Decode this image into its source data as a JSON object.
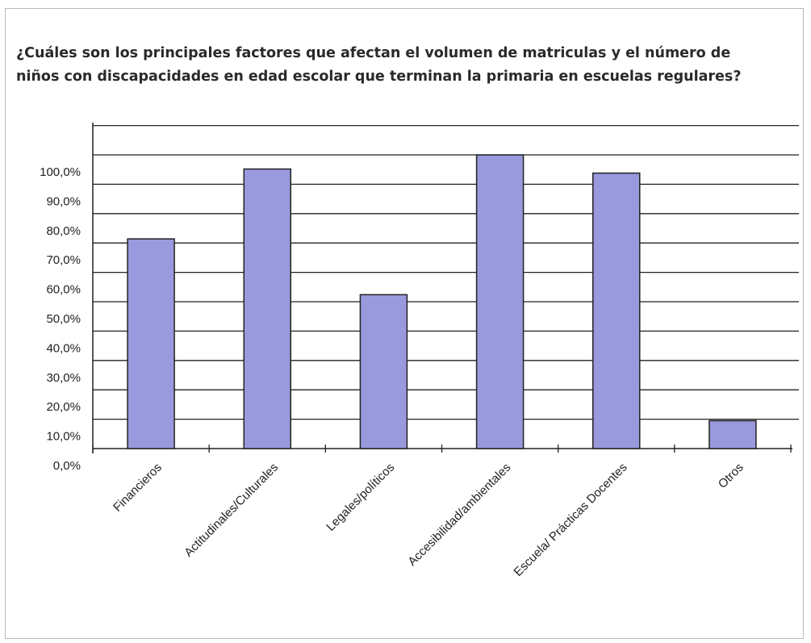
{
  "chart_data": {
    "type": "bar",
    "title": "¿Cuáles son los principales factores que afectan el volumen de matriculas y el número de niños con discapacidades en edad escolar que terminan la primaria en escuelas regulares?",
    "categories": [
      "Financieros",
      "Actitudinales/Culturales",
      "Legales/políticos",
      "Accesibilidad/ambientales",
      "Escuela/ Prácticas Docentes",
      "Otros"
    ],
    "values": [
      71.4,
      95.2,
      52.4,
      100.0,
      93.8,
      9.5
    ],
    "ylim": [
      0,
      100
    ],
    "ytick_labels": [
      "0,0%",
      "10,0%",
      "20,0%",
      "30,0%",
      "40,0%",
      "50,0%",
      "60,0%",
      "70,0%",
      "80,0%",
      "90,0%",
      "100,0%"
    ],
    "bar_color": "#9999dd",
    "grid": true
  }
}
